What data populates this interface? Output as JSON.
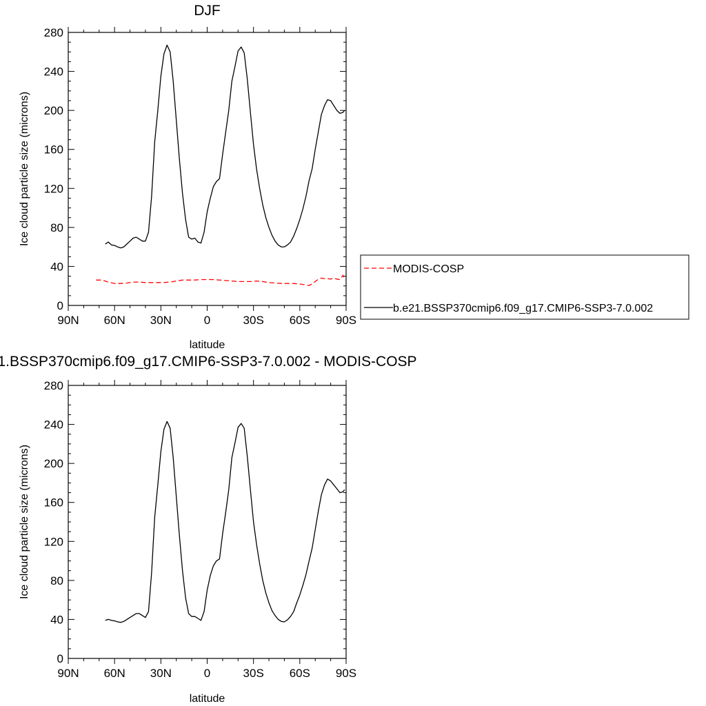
{
  "chart_data": [
    {
      "type": "line",
      "title": "DJF",
      "xlabel": "latitude",
      "ylabel": "Ice cloud particle size (microns)",
      "xlim": [
        90,
        -90
      ],
      "ylim": [
        0,
        280
      ],
      "x_ticks": [
        90,
        60,
        30,
        0,
        -30,
        -60,
        -90
      ],
      "x_tick_labels": [
        "90N",
        "60N",
        "30N",
        "0",
        "30S",
        "60S",
        "90S"
      ],
      "y_ticks": [
        0,
        40,
        80,
        120,
        160,
        200,
        240,
        280
      ],
      "y_tick_labels": [
        "0",
        "40",
        "80",
        "120",
        "160",
        "200",
        "240",
        "280"
      ],
      "grid": false,
      "legend_position": "right",
      "series": [
        {
          "name": "MODIS-COSP",
          "color": "#ff0000",
          "style": "dashed",
          "x": [
            72,
            68,
            64,
            60,
            56,
            52,
            48,
            44,
            40,
            36,
            32,
            28,
            24,
            20,
            16,
            12,
            8,
            4,
            0,
            -4,
            -8,
            -12,
            -16,
            -20,
            -24,
            -28,
            -32,
            -36,
            -40,
            -44,
            -48,
            -52,
            -56,
            -60,
            -64,
            -66,
            -68,
            -70,
            -72,
            -74,
            -76,
            -78,
            -80,
            -82,
            -84,
            -86,
            -88,
            -89
          ],
          "values": [
            26,
            26,
            24,
            22.5,
            22.5,
            23,
            24,
            24,
            23.5,
            23.5,
            23.5,
            23.5,
            24,
            25,
            26,
            26,
            26,
            26.5,
            26.5,
            26.5,
            26,
            25.5,
            25,
            24.5,
            24.5,
            24.5,
            25,
            24.5,
            23.5,
            23,
            22.5,
            22.5,
            22.5,
            22,
            21,
            20.5,
            22,
            24.5,
            27,
            28,
            27.5,
            27.5,
            27,
            28,
            27,
            26.5,
            31,
            26
          ]
        },
        {
          "name": "b.e21.BSSP370cmip6.f09_g17.CMIP6-SSP3-7.0.002",
          "color": "#000000",
          "style": "solid",
          "x": [
            66,
            64,
            62,
            60,
            58,
            56,
            54,
            52,
            50,
            48,
            46,
            44,
            42,
            40,
            38,
            36,
            34,
            32,
            30,
            28,
            26,
            24,
            22,
            20,
            18,
            16,
            14,
            12,
            10,
            8,
            6,
            4,
            2,
            0,
            -2,
            -4,
            -6,
            -8,
            -10,
            -12,
            -14,
            -16,
            -18,
            -20,
            -22,
            -24,
            -26,
            -28,
            -30,
            -32,
            -34,
            -36,
            -38,
            -40,
            -42,
            -44,
            -46,
            -48,
            -50,
            -52,
            -54,
            -56,
            -58,
            -60,
            -62,
            -64,
            -66,
            -68,
            -70,
            -72,
            -74,
            -76,
            -78,
            -80,
            -82,
            -84,
            -86,
            -88,
            -89
          ],
          "values": [
            63,
            65,
            62,
            61.5,
            60,
            59,
            60,
            63,
            66,
            69,
            70,
            68,
            66,
            66,
            75,
            112,
            168,
            200,
            235,
            258,
            267,
            260,
            230,
            190,
            150,
            115,
            88,
            70,
            68,
            69,
            65,
            64,
            75,
            96,
            110,
            122,
            127,
            130,
            155,
            178,
            200,
            230,
            245,
            261,
            265,
            259,
            232,
            198,
            165,
            140,
            120,
            103,
            90,
            80,
            72,
            66,
            62,
            60,
            60,
            62,
            65,
            71,
            79,
            88,
            99,
            112,
            128,
            140,
            160,
            178,
            196,
            205,
            211,
            210,
            205,
            200,
            197,
            198,
            200
          ]
        }
      ]
    },
    {
      "type": "line",
      "title": "1.BSSP370cmip6.f09_g17.CMIP6-SSP3-7.0.002 - MODIS-COSP",
      "xlabel": "latitude",
      "ylabel": "Ice cloud particle size (microns)",
      "xlim": [
        90,
        -90
      ],
      "ylim": [
        0,
        280
      ],
      "x_ticks": [
        90,
        60,
        30,
        0,
        -30,
        -60,
        -90
      ],
      "x_tick_labels": [
        "90N",
        "60N",
        "30N",
        "0",
        "30S",
        "60S",
        "90S"
      ],
      "y_ticks": [
        0,
        40,
        80,
        120,
        160,
        200,
        240,
        280
      ],
      "y_tick_labels": [
        "0",
        "40",
        "80",
        "120",
        "160",
        "200",
        "240",
        "280"
      ],
      "grid": false,
      "series": [
        {
          "color": "#000000",
          "style": "solid",
          "x": [
            66,
            64,
            62,
            60,
            58,
            56,
            54,
            52,
            50,
            48,
            46,
            44,
            42,
            40,
            38,
            36,
            34,
            32,
            30,
            28,
            26,
            24,
            22,
            20,
            18,
            16,
            14,
            12,
            10,
            8,
            6,
            4,
            2,
            0,
            -2,
            -4,
            -6,
            -8,
            -10,
            -12,
            -14,
            -16,
            -18,
            -20,
            -22,
            -24,
            -26,
            -28,
            -30,
            -32,
            -34,
            -36,
            -38,
            -40,
            -42,
            -44,
            -46,
            -48,
            -50,
            -52,
            -54,
            -56,
            -58,
            -60,
            -62,
            -64,
            -66,
            -68,
            -70,
            -72,
            -74,
            -76,
            -78,
            -80,
            -82,
            -84,
            -86,
            -88,
            -89
          ],
          "values": [
            39,
            40,
            39,
            38.5,
            37.5,
            37,
            38,
            40,
            42,
            44,
            46,
            46,
            44,
            42,
            48,
            88,
            145,
            178,
            212,
            235,
            243,
            236,
            206,
            166,
            126,
            90,
            62,
            46,
            43,
            43,
            41,
            39,
            48,
            70,
            85,
            95,
            100,
            102,
            128,
            150,
            173,
            206,
            221,
            237,
            241,
            236,
            207,
            173,
            140,
            117,
            97,
            80,
            67,
            57,
            49,
            44,
            40,
            38,
            37.5,
            39.5,
            43,
            48,
            57,
            65,
            75,
            86,
            100,
            113,
            132,
            151,
            168,
            178,
            184,
            182,
            178,
            174,
            170,
            171,
            173
          ]
        }
      ]
    }
  ]
}
